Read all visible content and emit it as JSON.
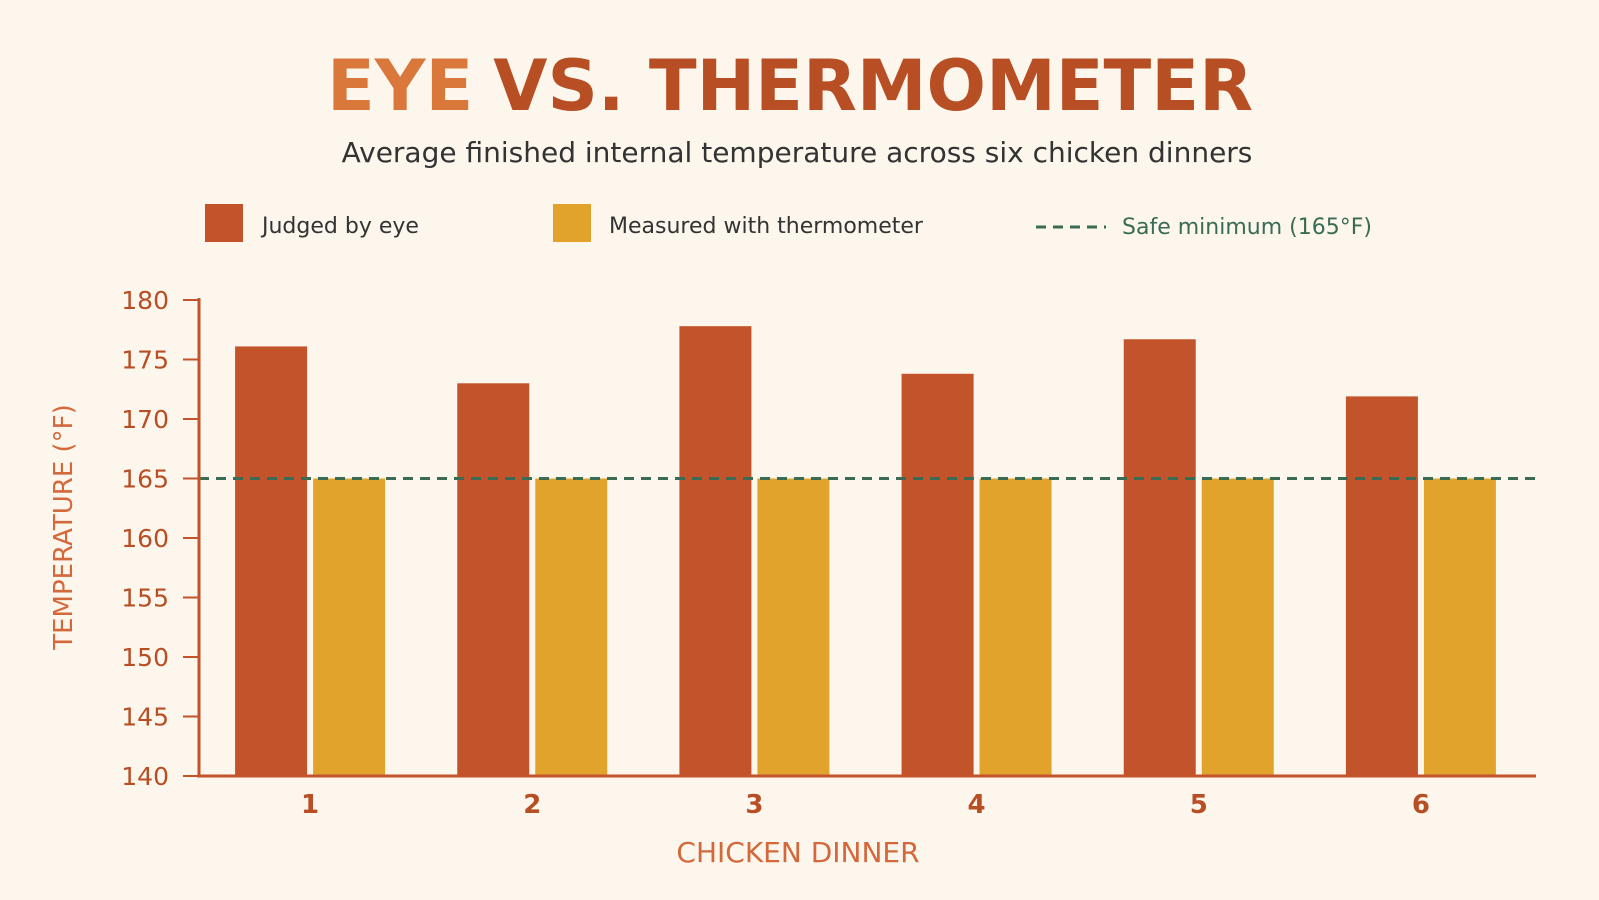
{
  "chart_data": {
    "type": "bar",
    "title_part1": "EYE",
    "title_part2": "VS. THERMOMETER",
    "subtitle": "Average finished internal temperature across six chicken dinners",
    "xlabel": "CHICKEN DINNER",
    "ylabel": "TEMPERATURE (°F)",
    "categories": [
      "1",
      "2",
      "3",
      "4",
      "5",
      "6"
    ],
    "ylim": [
      140,
      180
    ],
    "yticks": [
      "140",
      "145",
      "150",
      "155",
      "160",
      "165",
      "170",
      "175",
      "180"
    ],
    "series": [
      {
        "name": "Judged by eye",
        "color": "#c2532a",
        "values": [
          176.1,
          173.0,
          177.8,
          173.8,
          176.7,
          171.9
        ]
      },
      {
        "name": "Measured with thermometer",
        "color": "#e1a32b",
        "values": [
          165,
          165,
          165,
          165,
          165,
          165
        ]
      }
    ],
    "reference_line": {
      "name": "Safe minimum (165°F)",
      "value": 165,
      "color": "#3a6b55"
    },
    "legend_position": "top",
    "grid": false,
    "colors": {
      "title_part1": "#d9783a",
      "title_part2": "#b84e24",
      "axis": "#c2532a",
      "tick_labels": "#b84e24",
      "axis_label": "#d4683a",
      "subtitle": "#333333"
    }
  }
}
